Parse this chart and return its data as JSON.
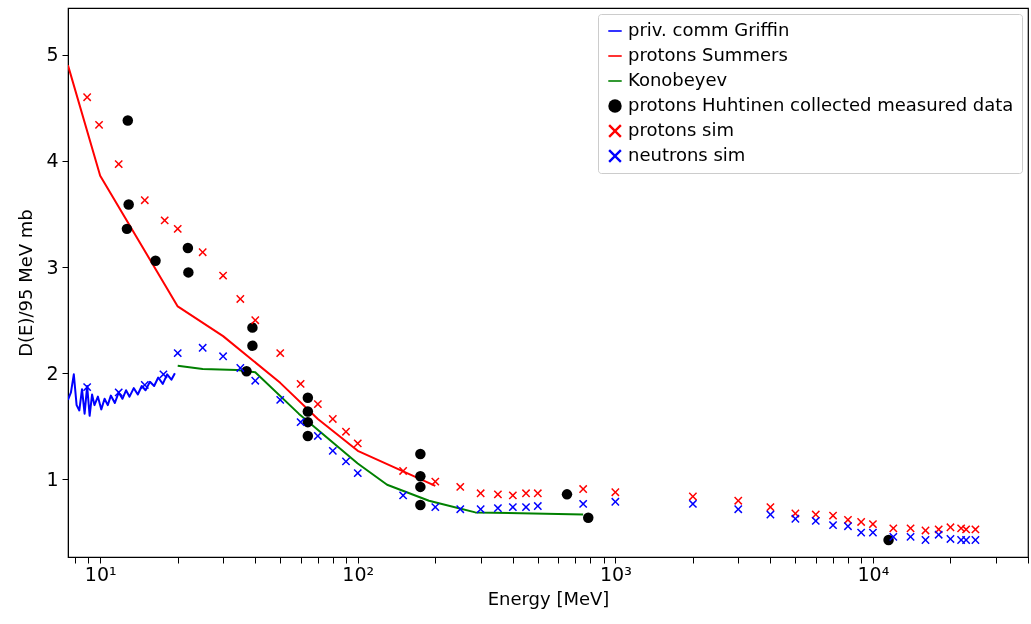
{
  "chart_data": {
    "type": "scatter",
    "xlabel": "Energy [MeV]",
    "ylabel": "D(E)/95 MeV mb",
    "log": "x",
    "grid": false,
    "legend": "top right",
    "xlim": [
      7.5,
      40000
    ],
    "ylim": [
      0.27,
      5.44
    ],
    "xticks": [
      {
        "value": 8,
        "label": null
      },
      {
        "value": 9,
        "label": null
      },
      {
        "value": 10,
        "label": "10¹"
      },
      {
        "value": 20,
        "label": null
      },
      {
        "value": 30,
        "label": null
      },
      {
        "value": 40,
        "label": null
      },
      {
        "value": 50,
        "label": null
      },
      {
        "value": 60,
        "label": null
      },
      {
        "value": 70,
        "label": null
      },
      {
        "value": 80,
        "label": null
      },
      {
        "value": 90,
        "label": null
      },
      {
        "value": 100,
        "label": "10²"
      },
      {
        "value": 200,
        "label": null
      },
      {
        "value": 300,
        "label": null
      },
      {
        "value": 400,
        "label": null
      },
      {
        "value": 500,
        "label": null
      },
      {
        "value": 600,
        "label": null
      },
      {
        "value": 700,
        "label": null
      },
      {
        "value": 800,
        "label": null
      },
      {
        "value": 900,
        "label": null
      },
      {
        "value": 1000,
        "label": "10³"
      },
      {
        "value": 2000,
        "label": null
      },
      {
        "value": 3000,
        "label": null
      },
      {
        "value": 4000,
        "label": null
      },
      {
        "value": 5000,
        "label": null
      },
      {
        "value": 6000,
        "label": null
      },
      {
        "value": 7000,
        "label": null
      },
      {
        "value": 8000,
        "label": null
      },
      {
        "value": 9000,
        "label": null
      },
      {
        "value": 10000,
        "label": "10⁴"
      },
      {
        "value": 20000,
        "label": null
      },
      {
        "value": 30000,
        "label": null
      },
      {
        "value": 40000,
        "label": null
      }
    ],
    "yticks": [
      1,
      2,
      3,
      4,
      5
    ],
    "series": [
      {
        "name": "priv. comm Griffin",
        "type": "line",
        "color": "#0000ff",
        "x": [
          7.5,
          7.7,
          7.9,
          8.1,
          8.3,
          8.5,
          8.7,
          8.9,
          9.1,
          9.3,
          9.5,
          9.8,
          10.1,
          10.4,
          10.7,
          11.0,
          11.4,
          11.8,
          12.2,
          12.6,
          13.0,
          13.5,
          14.0,
          14.5,
          15.0,
          15.6,
          16.2,
          16.8,
          17.5,
          18.2,
          18.9,
          19.5
        ],
        "values": [
          1.75,
          1.82,
          1.99,
          1.7,
          1.65,
          1.85,
          1.62,
          1.88,
          1.6,
          1.8,
          1.7,
          1.78,
          1.66,
          1.76,
          1.7,
          1.79,
          1.72,
          1.82,
          1.76,
          1.84,
          1.78,
          1.86,
          1.8,
          1.88,
          1.84,
          1.92,
          1.88,
          1.96,
          1.9,
          1.99,
          1.94,
          2.0
        ]
      },
      {
        "name": "protons Summers",
        "type": "line",
        "color": "#ff0000",
        "x": [
          7.5,
          10,
          20,
          30,
          50,
          70,
          100,
          200
        ],
        "values": [
          4.9,
          3.86,
          2.63,
          2.35,
          1.91,
          1.57,
          1.27,
          0.94
        ]
      },
      {
        "name": "Konobeyev",
        "type": "line",
        "color": "#008000",
        "x": [
          20,
          25,
          34,
          40,
          59,
          100,
          130,
          189,
          286,
          750
        ],
        "values": [
          2.07,
          2.04,
          2.03,
          2.01,
          1.62,
          1.15,
          0.95,
          0.8,
          0.69,
          0.67
        ]
      },
      {
        "name": "protons Huhtinen collected measured data",
        "type": "scatter",
        "marker": "circle",
        "color": "#000000",
        "x": [
          12.8,
          12.9,
          12.7,
          16.4,
          21.9,
          22,
          39,
          39,
          37,
          64,
          64,
          64,
          64,
          175,
          175,
          175,
          175,
          649,
          785,
          11500
        ],
        "values": [
          4.38,
          3.59,
          3.36,
          3.06,
          3.18,
          2.95,
          2.43,
          2.26,
          2.02,
          1.77,
          1.64,
          1.54,
          1.41,
          1.24,
          1.03,
          0.93,
          0.76,
          0.86,
          0.64,
          0.43
        ]
      },
      {
        "name": "protons sim",
        "type": "scatter",
        "marker": "cross",
        "color": "#ff0000",
        "x": [
          8.9,
          9.9,
          11.8,
          14.9,
          17.8,
          20,
          25,
          30,
          35,
          40,
          50,
          60,
          70,
          80,
          90,
          100,
          150,
          200,
          250,
          300,
          350,
          400,
          450,
          500,
          750,
          1000,
          2000,
          3000,
          4000,
          5000,
          6000,
          7000,
          8000,
          9000,
          10000,
          12000,
          14000,
          16000,
          18000,
          20000,
          22000,
          23000,
          25000
        ],
        "values": [
          4.6,
          4.34,
          3.97,
          3.63,
          3.44,
          3.36,
          3.14,
          2.92,
          2.7,
          2.5,
          2.19,
          1.9,
          1.71,
          1.57,
          1.45,
          1.34,
          1.08,
          0.98,
          0.93,
          0.87,
          0.86,
          0.85,
          0.87,
          0.87,
          0.91,
          0.88,
          0.84,
          0.8,
          0.74,
          0.68,
          0.67,
          0.66,
          0.62,
          0.6,
          0.58,
          0.54,
          0.54,
          0.52,
          0.53,
          0.55,
          0.54,
          0.53,
          0.53
        ]
      },
      {
        "name": "neutrons sim",
        "type": "scatter",
        "marker": "cross",
        "color": "#0000ff",
        "x": [
          8.9,
          11.8,
          14.9,
          17.6,
          20,
          25,
          30,
          35,
          40,
          50,
          60,
          70,
          80,
          90,
          100,
          150,
          200,
          250,
          300,
          350,
          400,
          450,
          500,
          750,
          1000,
          2000,
          3000,
          4000,
          5000,
          6000,
          7000,
          8000,
          9000,
          10000,
          12000,
          14000,
          16000,
          18000,
          20000,
          22000,
          23000,
          25000
        ],
        "values": [
          1.87,
          1.82,
          1.89,
          1.99,
          2.19,
          2.24,
          2.16,
          2.05,
          1.93,
          1.75,
          1.54,
          1.41,
          1.27,
          1.17,
          1.06,
          0.85,
          0.74,
          0.72,
          0.72,
          0.73,
          0.74,
          0.74,
          0.75,
          0.77,
          0.79,
          0.77,
          0.72,
          0.67,
          0.63,
          0.61,
          0.57,
          0.56,
          0.5,
          0.5,
          0.46,
          0.46,
          0.43,
          0.48,
          0.44,
          0.43,
          0.43,
          0.43
        ]
      }
    ]
  }
}
